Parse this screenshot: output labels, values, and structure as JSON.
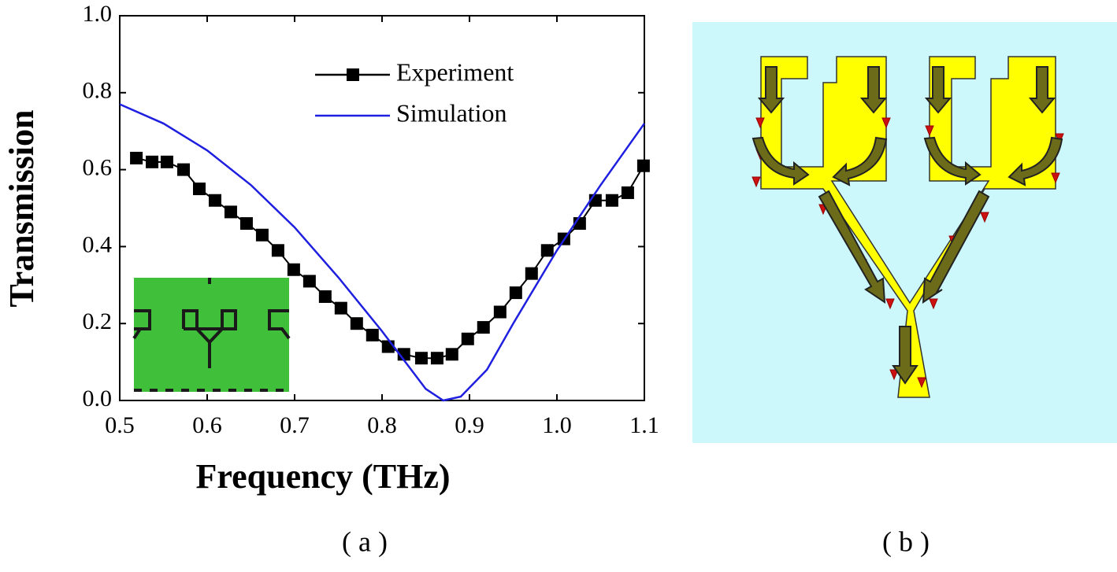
{
  "chart_data": {
    "type": "line",
    "xlabel": "Frequency (THz)",
    "ylabel": "Transmission",
    "xlim": [
      0.5,
      1.1
    ],
    "ylim": [
      0.0,
      1.0
    ],
    "xticks": [
      0.5,
      0.6,
      0.7,
      0.8,
      0.9,
      {
        "value": 1.0,
        "label": "1.0"
      },
      1.1
    ],
    "yticks": [
      {
        "value": 0.0,
        "label": "0.0"
      },
      0.2,
      0.4,
      0.6,
      0.8,
      {
        "value": 1.0,
        "label": "1.0"
      }
    ],
    "legend": "upper right",
    "series": [
      {
        "name": "Experiment",
        "color": "#000000",
        "marker": "square",
        "x": [
          0.519,
          0.537,
          0.554,
          0.573,
          0.591,
          0.609,
          0.627,
          0.645,
          0.663,
          0.681,
          0.699,
          0.717,
          0.735,
          0.753,
          0.771,
          0.789,
          0.807,
          0.825,
          0.845,
          0.863,
          0.88,
          0.898,
          0.916,
          0.935,
          0.953,
          0.971,
          0.989,
          1.008,
          1.026,
          1.044,
          1.063,
          1.081,
          1.099
        ],
        "values": [
          0.63,
          0.62,
          0.62,
          0.6,
          0.55,
          0.52,
          0.49,
          0.46,
          0.43,
          0.39,
          0.34,
          0.31,
          0.27,
          0.24,
          0.2,
          0.17,
          0.14,
          0.12,
          0.11,
          0.11,
          0.12,
          0.16,
          0.19,
          0.23,
          0.28,
          0.33,
          0.39,
          0.42,
          0.46,
          0.52,
          0.52,
          0.54,
          0.61
        ]
      },
      {
        "name": "Simulation",
        "color": "#1f1fe0",
        "x": [
          0.5,
          0.55,
          0.6,
          0.65,
          0.7,
          0.75,
          0.8,
          0.83,
          0.85,
          0.87,
          0.89,
          0.92,
          0.95,
          1.0,
          1.05,
          1.1
        ],
        "values": [
          0.77,
          0.72,
          0.65,
          0.56,
          0.45,
          0.32,
          0.18,
          0.09,
          0.03,
          0.0,
          0.01,
          0.08,
          0.2,
          0.39,
          0.56,
          0.72
        ]
      }
    ]
  },
  "panel_labels": [
    "( a )",
    "( b )"
  ]
}
